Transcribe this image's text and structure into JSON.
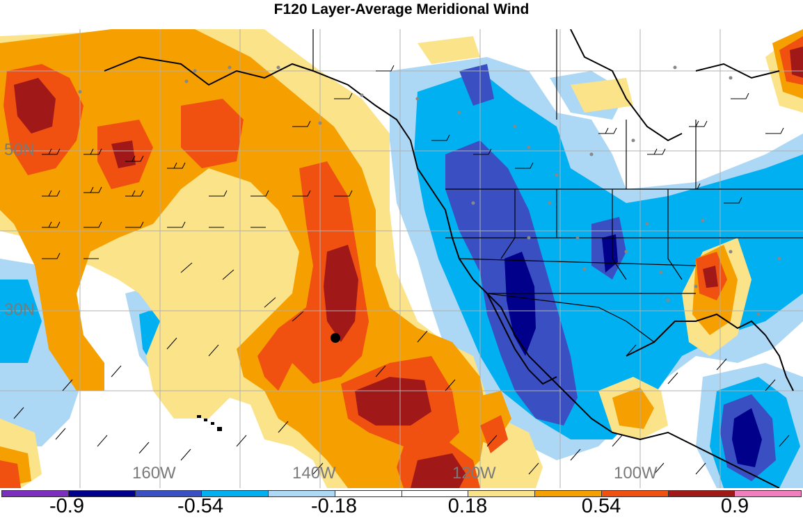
{
  "title": "F120 Layer-Average Meridional Wind",
  "lat_labels": [
    "50N",
    "30N"
  ],
  "lon_labels": [
    "160W",
    "140W",
    "120W",
    "100W"
  ],
  "colorbar": {
    "colors": [
      "#7b2fbe",
      "#00008b",
      "#3a4fc2",
      "#00b0f0",
      "#add8f5",
      "#ffffff",
      "#ffffff",
      "#fbe38a",
      "#f5a000",
      "#f05010",
      "#a01818",
      "#f07fbf"
    ],
    "tick_labels": [
      "-0.9",
      "-0.54",
      "-0.18",
      "0.18",
      "0.54",
      "0.9"
    ]
  },
  "colors": {
    "strong_pos": "#a01818",
    "pos_high": "#f05010",
    "pos_mid": "#f5a000",
    "pos_low": "#fbe38a",
    "neg_low": "#add8f5",
    "neg_mid": "#00b0f0",
    "neg_high": "#3a4fc2",
    "strong_neg": "#00008b"
  },
  "marker": "storm-center-dot"
}
